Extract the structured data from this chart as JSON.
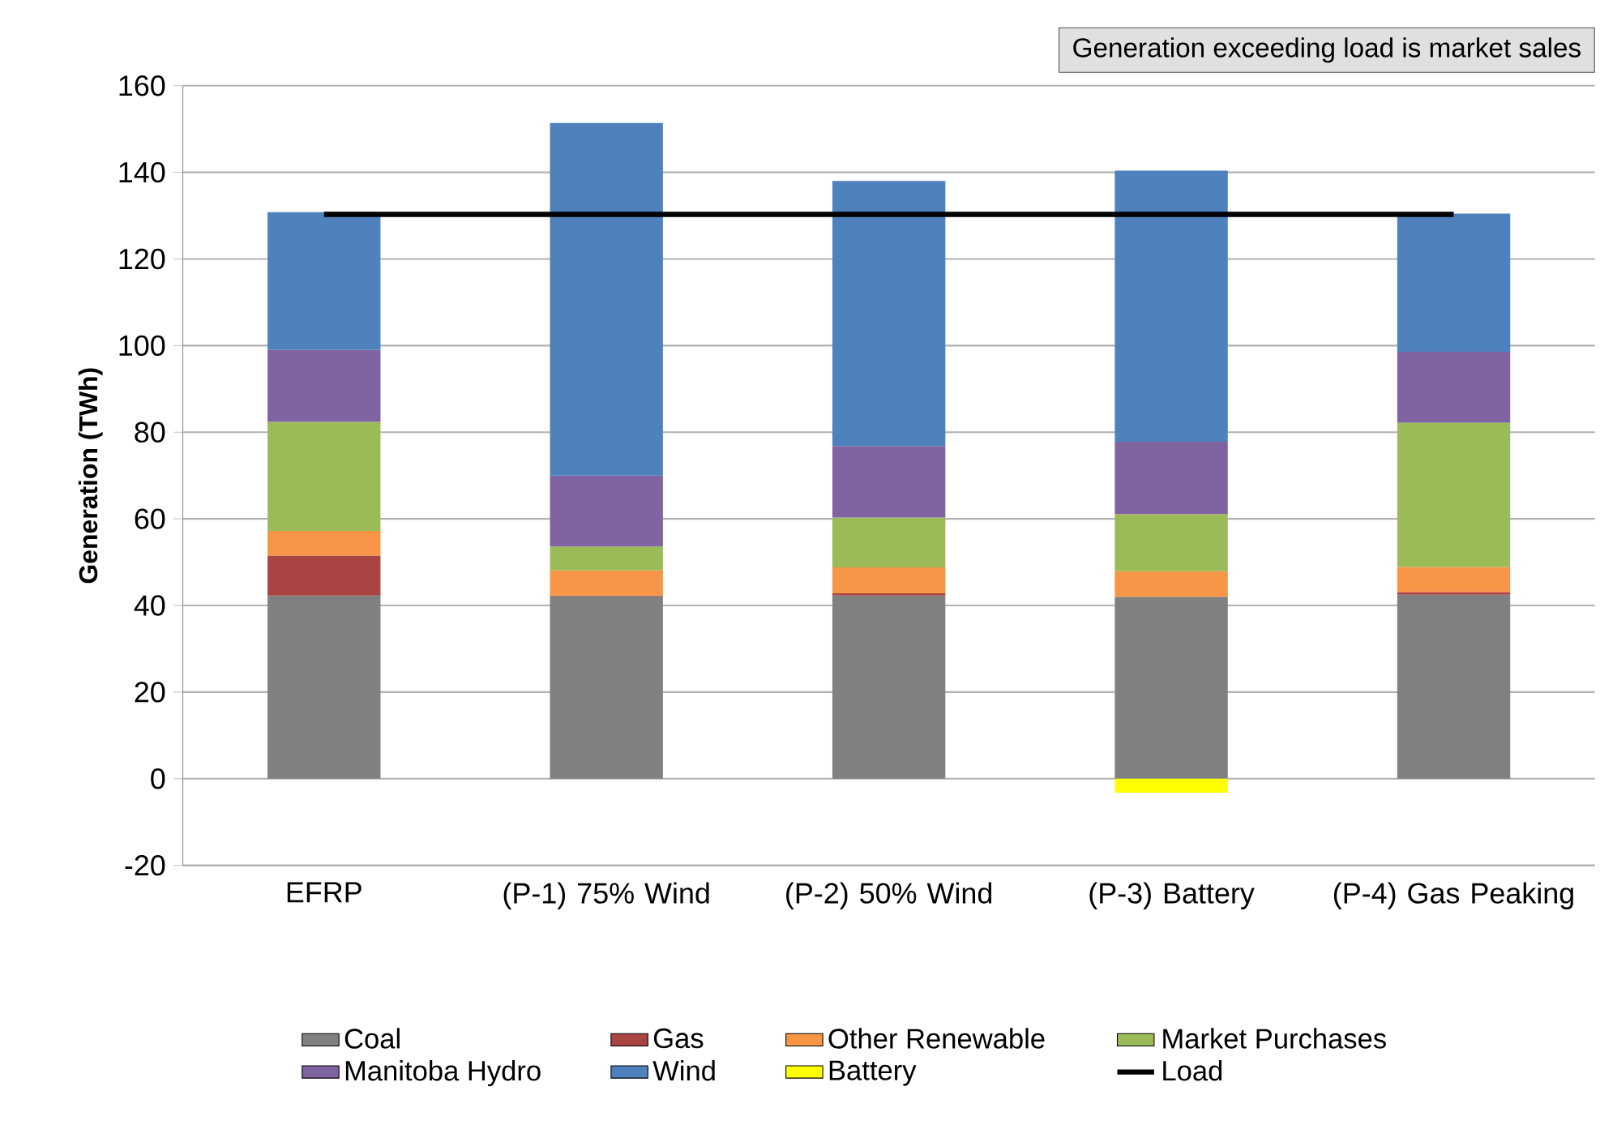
{
  "chart_data": {
    "type": "bar",
    "stacked": true,
    "ylabel": "Generation (TWh)",
    "categories": [
      "EFRP",
      "(P-1) 75% Wind",
      "(P-2) 50% Wind",
      "(P-3) Battery",
      "(P-4) Gas Peaking"
    ],
    "series": [
      {
        "name": "Coal",
        "color": "#808080",
        "values": [
          42.3,
          42.1,
          42.3,
          42.0,
          42.5
        ]
      },
      {
        "name": "Gas",
        "color": "#a94442",
        "values": [
          9.2,
          0.2,
          0.5,
          0,
          0.6
        ]
      },
      {
        "name": "Other Renewable",
        "color": "#f79646",
        "values": [
          5.7,
          5.8,
          6.0,
          5.9,
          5.8
        ]
      },
      {
        "name": "Market Purchases",
        "color": "#9bbb59",
        "values": [
          25.2,
          5.5,
          11.5,
          13.2,
          33.3
        ]
      },
      {
        "name": "Manitoba Hydro",
        "color": "#8064a2",
        "values": [
          16.6,
          16.4,
          16.5,
          16.7,
          16.4
        ]
      },
      {
        "name": "Wind",
        "color": "#4f81bd",
        "values": [
          31.8,
          81.4,
          61.2,
          62.6,
          31.9
        ]
      },
      {
        "name": "Battery",
        "color": "#ffff00",
        "values": [
          0,
          0,
          0,
          -3.2,
          0
        ]
      },
      {
        "name": "Load",
        "type": "line",
        "color": "#000000",
        "values": [
          130.3,
          130.3,
          130.3,
          130.3,
          130.3
        ]
      }
    ],
    "ylim": [
      -20,
      160
    ],
    "yticks": [
      -20,
      0,
      20,
      40,
      60,
      80,
      100,
      120,
      140,
      160
    ],
    "grid": "y",
    "legend": "bottom",
    "annotations": [
      "Generation exceeding load is market sales"
    ]
  }
}
